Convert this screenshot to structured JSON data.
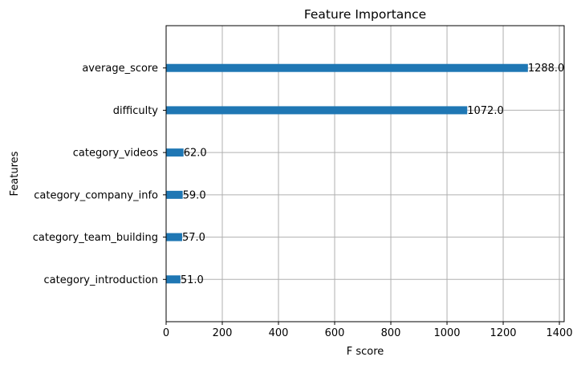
{
  "chart_data": {
    "type": "bar",
    "orientation": "horizontal",
    "title": "Feature Importance",
    "xlabel": "F score",
    "ylabel": "Features",
    "categories": [
      "average_score",
      "difficulty",
      "category_videos",
      "category_company_info",
      "category_team_building",
      "category_introduction"
    ],
    "values": [
      1288.0,
      1072.0,
      62.0,
      59.0,
      57.0,
      51.0
    ],
    "data_labels": [
      "1288.0",
      "1072.0",
      "62.0",
      "59.0",
      "57.0",
      "51.0"
    ],
    "xlim": [
      0,
      1417
    ],
    "xticks": [
      0,
      200,
      400,
      600,
      800,
      1000,
      1200,
      1400
    ],
    "grid": true,
    "bar_color": "#1f77b4"
  }
}
